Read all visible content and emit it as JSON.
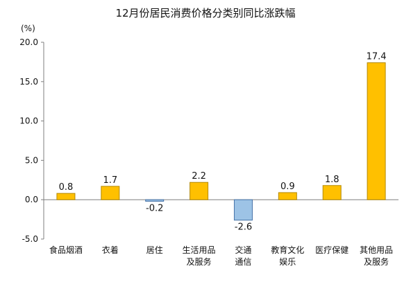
{
  "chart_data": {
    "type": "bar",
    "title": "12月份居民消费价格分类别同比涨跌幅",
    "unit": "(%)",
    "categories": [
      [
        "食品烟酒"
      ],
      [
        "衣着"
      ],
      [
        "居住"
      ],
      [
        "生活用品",
        "及服务"
      ],
      [
        "交通",
        "通信"
      ],
      [
        "教育文化",
        "娱乐"
      ],
      [
        "医疗保健"
      ],
      [
        "其他用品",
        "及服务"
      ]
    ],
    "values": [
      0.8,
      1.7,
      -0.2,
      2.2,
      -2.6,
      0.9,
      1.8,
      17.4
    ],
    "value_labels": [
      "0.8",
      "1.7",
      "-0.2",
      "2.2",
      "-2.6",
      "0.9",
      "1.8",
      "17.4"
    ],
    "ylim": [
      -5.0,
      20.0
    ],
    "yticks": [
      20.0,
      15.0,
      10.0,
      5.0,
      0.0,
      -5.0
    ],
    "ytick_labels": [
      "20.0",
      "15.0",
      "10.0",
      "5.0",
      "0.0",
      "-5.0"
    ],
    "grid": false,
    "colors": {
      "positive": "#FFC000",
      "positive_edge": "#B38800",
      "negative": "#9DC3E6",
      "negative_edge": "#4472A8",
      "axis": "#7F7F7F"
    }
  }
}
